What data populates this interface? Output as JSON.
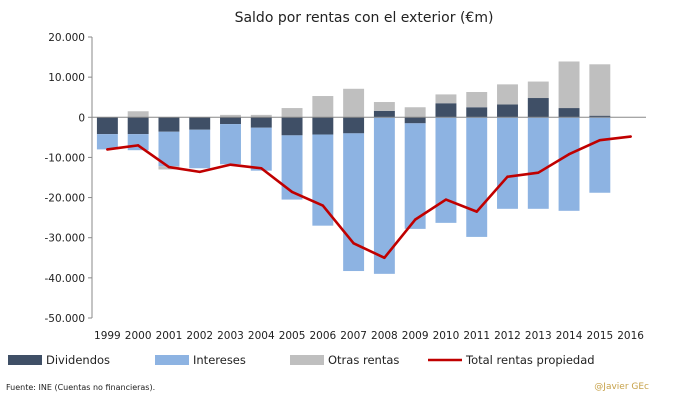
{
  "chart_data": {
    "type": "bar",
    "title": "Saldo por rentas con el exterior (€m)",
    "categories": [
      "1999",
      "2000",
      "2001",
      "2002",
      "2003",
      "2004",
      "2005",
      "2006",
      "2007",
      "2008",
      "2009",
      "2010",
      "2011",
      "2012",
      "2013",
      "2014",
      "2015",
      "2016"
    ],
    "ylim": [
      -50000,
      20000
    ],
    "yticks": [
      20000,
      10000,
      0,
      -10000,
      -20000,
      -30000,
      -40000,
      -50000
    ],
    "ytick_labels": [
      "20.000",
      "10.000",
      "0",
      "-10.000",
      "-20.000",
      "-30.000",
      "-40.000",
      "-50.000"
    ],
    "stacked": true,
    "series": [
      {
        "name": "Dividendos",
        "type": "bar",
        "color": "#3f4f66",
        "values": [
          -4200,
          -4200,
          -3600,
          -3100,
          -1700,
          -2600,
          -4500,
          -4300,
          -4000,
          1600,
          -1500,
          3500,
          2500,
          3200,
          4800,
          2300,
          400,
          null
        ]
      },
      {
        "name": "Intereses",
        "type": "bar",
        "color": "#8db3e2",
        "values": [
          -3800,
          -4000,
          -8600,
          -9600,
          -10000,
          -10700,
          -16000,
          -22700,
          -34300,
          -39000,
          -26300,
          -26300,
          -29800,
          -22800,
          -22800,
          -23300,
          -18800,
          null
        ]
      },
      {
        "name": "Otras rentas",
        "type": "bar",
        "color": "#bfbfbf",
        "values": [
          0,
          1500,
          -800,
          0,
          600,
          600,
          2300,
          5300,
          7100,
          2200,
          2500,
          2200,
          3800,
          5000,
          4100,
          11600,
          12800,
          null
        ]
      },
      {
        "name": "Total rentas propiedad",
        "type": "line",
        "color": "#c00000",
        "values": [
          -8000,
          -7000,
          -12400,
          -13600,
          -11800,
          -12700,
          -18600,
          -22000,
          -31400,
          -35000,
          -25500,
          -20500,
          -23500,
          -14800,
          -13800,
          -9200,
          -5700,
          -4800
        ]
      }
    ]
  },
  "footer": {
    "source": "Fuente: INE (Cuentas no financieras).",
    "credit": "@Javier GEc"
  }
}
